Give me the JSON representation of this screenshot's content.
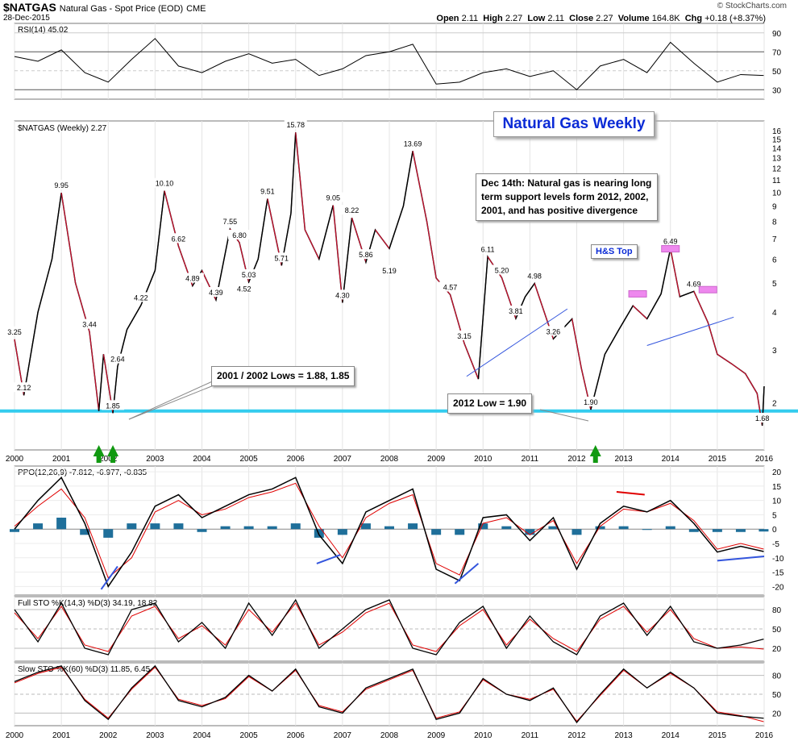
{
  "header": {
    "symbol": "$NATGAS",
    "name": "Natural Gas - Spot Price (EOD)",
    "exchange": "CME",
    "date": "28-Dec-2015",
    "brand": "© StockCharts.com",
    "open_label": "Open",
    "open": "2.11",
    "high_label": "High",
    "high": "2.27",
    "low_label": "Low",
    "low": "2.11",
    "close_label": "Close",
    "close": "2.27",
    "volume_label": "Volume",
    "volume": "164.8K",
    "chg_label": "Chg",
    "chg": "+0.18 (+8.37%)"
  },
  "colors": {
    "price": "#000000",
    "price_down": "#c8102e",
    "rsi": "#000000",
    "ppo": "#000000",
    "signal": "#e00000",
    "hist": "#1f6f9a",
    "support": "#33ccee",
    "trend": "#3355dd",
    "arrow": "#119911",
    "box": "#ee88ee"
  },
  "annotations": {
    "title": "Natural Gas Weekly",
    "note_dec14": "Dec 14th: Natural gas is nearing long term support levels form 2012, 2002, 2001, and has positive divergence",
    "lows_2001_2002": "2001 / 2002 Lows = 1.88, 1.85",
    "low_2012": "2012 Low = 1.90",
    "hs_top": "H&S Top"
  },
  "chart_data": [
    {
      "type": "line",
      "panel": "rsi",
      "title": "RSI(14) 45.02",
      "ylim": [
        20,
        100
      ],
      "y_ticks": [
        30,
        50,
        70,
        90
      ],
      "x": [
        2000.0,
        2000.5,
        2001.0,
        2001.5,
        2002.0,
        2002.5,
        2003.0,
        2003.5,
        2004.0,
        2004.5,
        2005.0,
        2005.5,
        2006.0,
        2006.5,
        2007.0,
        2007.5,
        2008.0,
        2008.5,
        2009.0,
        2009.5,
        2010.0,
        2010.5,
        2011.0,
        2011.5,
        2012.0,
        2012.5,
        2013.0,
        2013.5,
        2014.0,
        2014.5,
        2015.0,
        2015.5,
        2015.99
      ],
      "values": [
        65,
        60,
        72,
        48,
        38,
        62,
        84,
        55,
        48,
        60,
        68,
        58,
        62,
        45,
        52,
        66,
        70,
        78,
        36,
        38,
        48,
        52,
        44,
        50,
        30,
        55,
        62,
        48,
        80,
        58,
        38,
        46,
        45.02
      ]
    },
    {
      "type": "line",
      "panel": "price",
      "title": "$NATGAS (Weekly) 2.27",
      "scale": "log",
      "ylim": [
        1.68,
        16
      ],
      "y_ticks": [
        2,
        3,
        4,
        5,
        6,
        7,
        8,
        9,
        10,
        11,
        12,
        13,
        14,
        15,
        16
      ],
      "x_ticks": [
        "2000",
        "2001",
        "2002",
        "2003",
        "2004",
        "2005",
        "2006",
        "2007",
        "2008",
        "2009",
        "2010",
        "2011",
        "2012",
        "2013",
        "2014",
        "2015",
        "2016"
      ],
      "x": [
        2000.0,
        2000.2,
        2000.5,
        2000.8,
        2001.0,
        2001.3,
        2001.6,
        2001.8,
        2001.9,
        2002.1,
        2002.2,
        2002.4,
        2002.7,
        2003.0,
        2003.2,
        2003.5,
        2003.8,
        2004.0,
        2004.3,
        2004.6,
        2004.8,
        2005.0,
        2005.2,
        2005.4,
        2005.7,
        2005.9,
        2006.0,
        2006.2,
        2006.5,
        2006.8,
        2007.0,
        2007.2,
        2007.5,
        2007.7,
        2008.0,
        2008.3,
        2008.5,
        2008.8,
        2009.0,
        2009.3,
        2009.6,
        2009.9,
        2010.1,
        2010.4,
        2010.7,
        2010.9,
        2011.1,
        2011.5,
        2011.9,
        2012.1,
        2012.3,
        2012.6,
        2012.9,
        2013.2,
        2013.5,
        2013.8,
        2014.0,
        2014.2,
        2014.5,
        2014.8,
        2015.0,
        2015.3,
        2015.6,
        2015.85,
        2015.96,
        2016.0
      ],
      "values": [
        3.25,
        2.12,
        4.0,
        6.0,
        9.95,
        5.0,
        3.44,
        1.88,
        2.9,
        1.85,
        2.64,
        3.5,
        4.22,
        5.5,
        10.1,
        6.62,
        4.89,
        5.5,
        4.39,
        7.55,
        6.8,
        5.03,
        6.0,
        9.51,
        5.71,
        8.5,
        15.78,
        7.5,
        6.0,
        9.05,
        4.3,
        8.22,
        5.86,
        7.5,
        6.5,
        9.0,
        13.69,
        8.0,
        5.19,
        4.57,
        3.15,
        2.4,
        6.11,
        5.2,
        3.81,
        4.5,
        4.98,
        3.26,
        3.8,
        2.6,
        1.9,
        2.9,
        3.5,
        4.2,
        3.8,
        4.6,
        6.49,
        4.5,
        4.69,
        3.7,
        2.9,
        2.7,
        2.5,
        2.15,
        1.68,
        2.27
      ],
      "labels": [
        {
          "text": "3.25",
          "x": 2000.0,
          "y": 3.25
        },
        {
          "text": "2.12",
          "x": 2000.2,
          "y": 2.12
        },
        {
          "text": "9.95",
          "x": 2001.0,
          "y": 9.95
        },
        {
          "text": "3.44",
          "x": 2001.6,
          "y": 3.44
        },
        {
          "text": "1.85",
          "x": 2002.1,
          "y": 1.85
        },
        {
          "text": "2.64",
          "x": 2002.2,
          "y": 2.64
        },
        {
          "text": "4.22",
          "x": 2002.7,
          "y": 4.22
        },
        {
          "text": "10.10",
          "x": 2003.2,
          "y": 10.1
        },
        {
          "text": "6.62",
          "x": 2003.5,
          "y": 6.62
        },
        {
          "text": "4.89",
          "x": 2003.8,
          "y": 4.89
        },
        {
          "text": "4.39",
          "x": 2004.3,
          "y": 4.39
        },
        {
          "text": "7.55",
          "x": 2004.6,
          "y": 7.55
        },
        {
          "text": "6.80",
          "x": 2004.8,
          "y": 6.8
        },
        {
          "text": "5.03",
          "x": 2005.0,
          "y": 5.03
        },
        {
          "text": "4.52",
          "x": 2004.9,
          "y": 4.52
        },
        {
          "text": "9.51",
          "x": 2005.4,
          "y": 9.51
        },
        {
          "text": "5.71",
          "x": 2005.7,
          "y": 5.71
        },
        {
          "text": "15.78",
          "x": 2006.0,
          "y": 15.78
        },
        {
          "text": "9.05",
          "x": 2006.8,
          "y": 9.05
        },
        {
          "text": "8.22",
          "x": 2007.2,
          "y": 8.22
        },
        {
          "text": "4.30",
          "x": 2007.0,
          "y": 4.3
        },
        {
          "text": "5.86",
          "x": 2007.5,
          "y": 5.86
        },
        {
          "text": "5.19",
          "x": 2008.0,
          "y": 5.19
        },
        {
          "text": "13.69",
          "x": 2008.5,
          "y": 13.69
        },
        {
          "text": "4.57",
          "x": 2009.3,
          "y": 4.57
        },
        {
          "text": "3.15",
          "x": 2009.6,
          "y": 3.15
        },
        {
          "text": "6.11",
          "x": 2010.1,
          "y": 6.11
        },
        {
          "text": "5.20",
          "x": 2010.4,
          "y": 5.2
        },
        {
          "text": "3.81",
          "x": 2010.7,
          "y": 3.81
        },
        {
          "text": "4.98",
          "x": 2011.1,
          "y": 4.98
        },
        {
          "text": "3.26",
          "x": 2011.5,
          "y": 3.26
        },
        {
          "text": "1.90",
          "x": 2012.3,
          "y": 1.9
        },
        {
          "text": "6.49",
          "x": 2014.0,
          "y": 6.49
        },
        {
          "text": "4.69",
          "x": 2014.5,
          "y": 4.69
        },
        {
          "text": "1.68",
          "x": 2015.96,
          "y": 1.68
        }
      ],
      "support_level": 1.88
    },
    {
      "type": "line",
      "panel": "ppo",
      "title": "PPO(12,26,9) -7.812, -6.977, -0.835",
      "ylim": [
        -23,
        22
      ],
      "y_ticks": [
        -20,
        -15,
        -10,
        -5,
        0,
        5,
        10,
        15,
        20
      ],
      "series": [
        {
          "name": "PPO",
          "values": [
            0,
            10,
            18,
            2,
            -20,
            -8,
            8,
            12,
            4,
            8,
            12,
            14,
            18,
            -2,
            -12,
            6,
            10,
            14,
            -14,
            -18,
            4,
            5,
            -4,
            4,
            -14,
            2,
            8,
            6,
            10,
            2,
            -8,
            -6,
            -7.812
          ]
        },
        {
          "name": "Signal",
          "values": [
            1,
            8,
            14,
            4,
            -17,
            -10,
            6,
            10,
            5,
            7,
            11,
            13,
            16,
            1,
            -10,
            4,
            9,
            12,
            -12,
            -16,
            2,
            4,
            -2,
            3,
            -12,
            1,
            7,
            6,
            9,
            3,
            -7,
            -5,
            -6.977
          ]
        },
        {
          "name": "Histogram",
          "values": [
            -1,
            2,
            4,
            -2,
            -3,
            2,
            2,
            2,
            -1,
            1,
            1,
            1,
            2,
            -3,
            -2,
            2,
            1,
            2,
            -2,
            -2,
            2,
            1,
            -2,
            1,
            -2,
            1,
            1,
            0,
            1,
            -1,
            -1,
            -1,
            -0.835
          ]
        }
      ]
    },
    {
      "type": "line",
      "panel": "full_sto",
      "title": "Full STO %K(14,3) %D(3) 34.19, 18.82",
      "ylim": [
        0,
        100
      ],
      "y_ticks": [
        20,
        50,
        80
      ],
      "series": [
        {
          "name": "%K",
          "values": [
            80,
            30,
            90,
            20,
            10,
            80,
            90,
            30,
            60,
            20,
            90,
            40,
            95,
            20,
            50,
            80,
            95,
            20,
            10,
            60,
            85,
            20,
            70,
            30,
            10,
            70,
            90,
            40,
            85,
            30,
            20,
            25,
            34.19
          ]
        },
        {
          "name": "%D",
          "values": [
            75,
            35,
            85,
            25,
            15,
            70,
            85,
            35,
            55,
            25,
            80,
            45,
            90,
            25,
            45,
            75,
            90,
            25,
            15,
            55,
            80,
            25,
            65,
            35,
            15,
            65,
            85,
            45,
            80,
            35,
            20,
            22,
            18.82
          ]
        }
      ]
    },
    {
      "type": "line",
      "panel": "slow_sto",
      "title": "Slow STO %K(60) %D(3) 11.85, 6.45",
      "ylim": [
        0,
        100
      ],
      "y_ticks": [
        20,
        50,
        80
      ],
      "series": [
        {
          "name": "%K",
          "values": [
            70,
            85,
            95,
            40,
            10,
            60,
            95,
            40,
            30,
            45,
            80,
            55,
            90,
            30,
            20,
            60,
            75,
            90,
            10,
            20,
            75,
            50,
            40,
            60,
            5,
            50,
            90,
            60,
            85,
            60,
            20,
            15,
            11.85
          ]
        },
        {
          "name": "%D",
          "values": [
            68,
            83,
            93,
            42,
            12,
            58,
            93,
            42,
            32,
            43,
            78,
            55,
            88,
            32,
            22,
            58,
            73,
            88,
            12,
            22,
            73,
            50,
            42,
            58,
            7,
            48,
            88,
            60,
            83,
            60,
            22,
            16,
            6.45
          ]
        }
      ]
    }
  ]
}
